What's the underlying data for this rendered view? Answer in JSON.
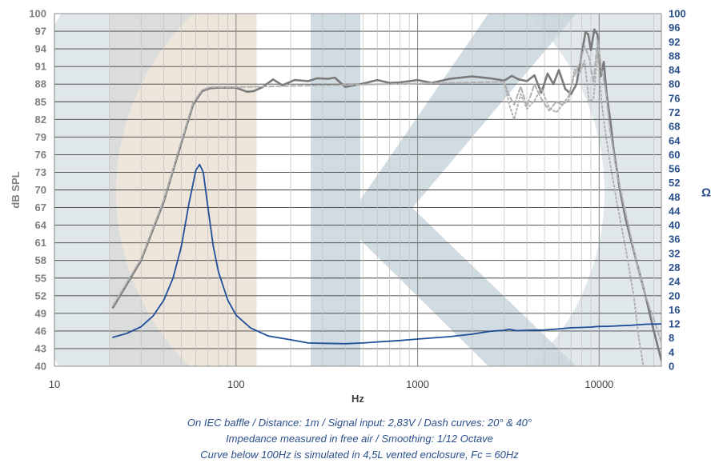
{
  "chart_data": {
    "type": "line",
    "x_scale": "log",
    "xlabel": "Hz",
    "xlim": [
      10,
      22000
    ],
    "x_ticks": [
      "10",
      "100",
      "1000",
      "10000"
    ],
    "ylabel": "dB SPL",
    "ylim": [
      40,
      100
    ],
    "y_ticks": [
      "40",
      "43",
      "46",
      "49",
      "52",
      "55",
      "58",
      "61",
      "64",
      "67",
      "70",
      "73",
      "76",
      "79",
      "82",
      "85",
      "88",
      "91",
      "94",
      "97",
      "100"
    ],
    "y2label": "Ω",
    "y2lim": [
      0,
      100
    ],
    "y2_ticks": [
      "0",
      "4",
      "8",
      "12",
      "16",
      "20",
      "24",
      "28",
      "32",
      "36",
      "40",
      "44",
      "48",
      "52",
      "56",
      "60",
      "64",
      "68",
      "72",
      "76",
      "80",
      "84",
      "88",
      "92",
      "96",
      "100"
    ],
    "grid": true,
    "colors": {
      "spl": "#7a7a7a",
      "spl_dash": "#b0b0b0",
      "impedance": "#1f4e9a",
      "background_shape": "#c9d6dd",
      "background_band": "#efe6db"
    },
    "series": [
      {
        "axis": "left",
        "style": "solid",
        "x": [
          21,
          30,
          40,
          50,
          58,
          65,
          72,
          80,
          100,
          115,
          125,
          140,
          160,
          180,
          210,
          250,
          280,
          320,
          350,
          400,
          500,
          600,
          700,
          800,
          1000,
          1200,
          1500,
          2000,
          2500,
          3000,
          3300,
          3600,
          4000,
          4400,
          4800,
          5200,
          5600,
          6000,
          6500,
          7000,
          7500,
          8000,
          8400,
          8700,
          9000,
          9400,
          9800,
          10200,
          10600,
          11000,
          11500,
          12000,
          13000,
          14000,
          16000,
          18000,
          20000,
          22000
        ],
        "y": [
          50,
          58,
          68,
          78,
          84.5,
          86.8,
          87.3,
          87.4,
          87.4,
          86.7,
          86.8,
          87.5,
          88.8,
          87.8,
          88.7,
          88.5,
          89,
          88.9,
          89.1,
          87.5,
          88.1,
          88.7,
          88.2,
          88.3,
          88.7,
          88.2,
          88.9,
          89.3,
          89,
          88.6,
          89.4,
          88.8,
          88.5,
          89.5,
          86.5,
          89.8,
          88,
          90.4,
          87.2,
          86.3,
          88,
          93,
          96.8,
          96.5,
          93.8,
          97.3,
          96.4,
          89.3,
          91.8,
          86.2,
          82,
          77,
          70,
          65,
          58,
          52,
          46,
          41
        ]
      },
      {
        "axis": "left",
        "style": "dashed",
        "x": [
          21,
          30,
          40,
          50,
          58,
          65,
          72,
          80,
          100,
          3000,
          3200,
          3400,
          3700,
          4000,
          4400,
          4800,
          5300,
          5800,
          6300,
          6800,
          7300,
          7800,
          8300,
          8800,
          9300,
          9800,
          10300,
          10800,
          11500,
          12500,
          14000,
          16000,
          18000,
          20000,
          22000
        ],
        "y": [
          50.3,
          58.3,
          68.3,
          78.3,
          84.8,
          87,
          87.5,
          87.5,
          87.5,
          88.4,
          86,
          84.5,
          87.6,
          84.2,
          88,
          85.5,
          83.5,
          85,
          84.5,
          86,
          89.5,
          91.5,
          94.5,
          92.5,
          88.3,
          95.5,
          90.5,
          87.5,
          80,
          73,
          66,
          58,
          52,
          48,
          44
        ]
      },
      {
        "axis": "left",
        "style": "dotted",
        "x": [
          3000,
          3200,
          3400,
          3700,
          4000,
          4400,
          4800,
          5300,
          5800,
          6300,
          6800,
          7300,
          7800,
          8300,
          8800,
          9300,
          9800,
          10300,
          10800,
          11500,
          12500,
          14000,
          15500,
          16500,
          17500
        ],
        "y": [
          88.3,
          84.5,
          82,
          86.3,
          83.8,
          85.2,
          87.3,
          84,
          83.2,
          84.5,
          85.3,
          90.5,
          89.8,
          92,
          85,
          85.5,
          93.4,
          85,
          80,
          74.5,
          68,
          60,
          52,
          45,
          40
        ]
      },
      {
        "axis": "right",
        "style": "solid",
        "x": [
          21,
          25,
          30,
          35,
          40,
          45,
          50,
          55,
          60,
          63,
          66,
          70,
          75,
          80,
          90,
          100,
          120,
          150,
          200,
          250,
          300,
          400,
          500,
          600,
          700,
          800,
          1000,
          1500,
          2000,
          2500,
          3000,
          3200,
          3500,
          4000,
          5000,
          6000,
          7000,
          8000,
          9000,
          10000,
          11000,
          13000,
          15000,
          18000,
          22000
        ],
        "y": [
          8.2,
          9.3,
          11.2,
          14.3,
          18.7,
          25,
          34,
          46,
          55.5,
          57.2,
          55,
          45,
          34,
          26.8,
          18.8,
          14.5,
          10.9,
          8.6,
          7.5,
          6.6,
          6.5,
          6.4,
          6.6,
          6.9,
          7.1,
          7.3,
          7.7,
          8.4,
          9.1,
          9.9,
          10.2,
          10.5,
          10.1,
          10.2,
          10.3,
          10.6,
          10.9,
          11,
          11.1,
          11.3,
          11.3,
          11.5,
          11.6,
          11.9,
          12
        ]
      }
    ],
    "caption": [
      "On IEC baffle / Distance: 1m / Signal input: 2,83V / Dash curves: 20° & 40°",
      "Impedance measured in free air / Smoothing: 1/12 Octave",
      "Curve below 100Hz is simulated in 4,5L vented enclosure, Fc = 60Hz"
    ]
  }
}
